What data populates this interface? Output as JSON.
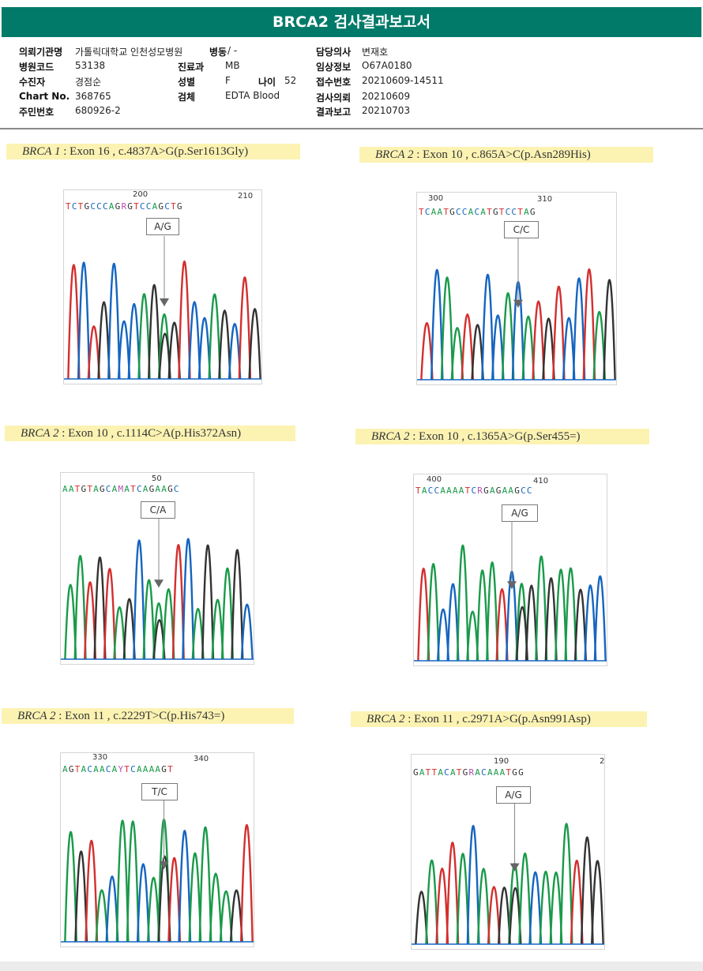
{
  "header": {
    "title": "BRCA2 검사결과보고서"
  },
  "info": {
    "rows": [
      [
        {
          "label": "의뢰기관명",
          "value": "가톨릭대학교 인천성모병원"
        },
        {
          "label": "병동",
          "value": "/ -"
        },
        {
          "label": "담당의사",
          "value": "변재호"
        }
      ],
      [
        {
          "label": "병원코드",
          "value": "53138"
        },
        {
          "label": "진료과",
          "value": "MB"
        },
        {
          "label": "임상정보",
          "value": "O67A0180"
        }
      ],
      [
        {
          "label": "수진자",
          "value": "경점순"
        },
        {
          "label": "성별",
          "value": "F"
        },
        {
          "label": "나이",
          "value": "52"
        },
        {
          "label": "접수번호",
          "value": "20210609-14511"
        }
      ],
      [
        {
          "label": "Chart No.",
          "value": "368765"
        },
        {
          "label": "검체",
          "value": "EDTA Blood"
        },
        {
          "label": "검사의뢰",
          "value": "20210609"
        }
      ],
      [
        {
          "label": "주민번호",
          "value": "680926-2"
        },
        {
          "label": "결과보고",
          "value": "20210703"
        }
      ]
    ]
  },
  "panels": [
    {
      "gene": "BRCA 1",
      "detail": "Exon 16 , c.4837A>G(p.Ser1613Gly)",
      "seq": "TCTGCCCAGRGTCCAGCTG",
      "pos1": "200",
      "pos2": "210",
      "call": "A/G"
    },
    {
      "gene": "BRCA 2",
      "detail": "Exon 10 , c.865A>C(p.Asn289His)",
      "seq": "TCAATGCCACATGTCCTAG",
      "pos1": "300",
      "pos2": "310",
      "call": "C/C"
    },
    {
      "gene": "BRCA 2",
      "detail": "Exon 10 , c.1114C>A(p.His372Asn)",
      "seq": "AATGTAGCAMATCAGAAGC",
      "pos1": "50",
      "pos2": "",
      "call": "C/A"
    },
    {
      "gene": "BRCA 2",
      "detail": "Exon 10 , c.1365A>G(p.Ser455=)",
      "seq": "TACCAAAATCRGAGAAGCC",
      "pos1": "400",
      "pos2": "410",
      "call": "A/G"
    },
    {
      "gene": "BRCA 2",
      "detail": "Exon 11 , c.2229T>C(p.His743=)",
      "seq": "AGTACAACAYTCAAAAGT",
      "pos1": "330",
      "pos2": "340",
      "call": "T/C"
    },
    {
      "gene": "BRCA 2",
      "detail": "Exon 11 , c.2971A>G(p.Asn991Asp)",
      "seq": "GATTACATGRACAAATGG",
      "pos1": "190",
      "pos2": "2",
      "call": "A/G"
    }
  ],
  "colors": {
    "A": "#1a9a4a",
    "C": "#1565c0",
    "G": "#333333",
    "T": "#d32f2f",
    "ambiguous": "#b54fb0",
    "banner": "#027a6a"
  }
}
